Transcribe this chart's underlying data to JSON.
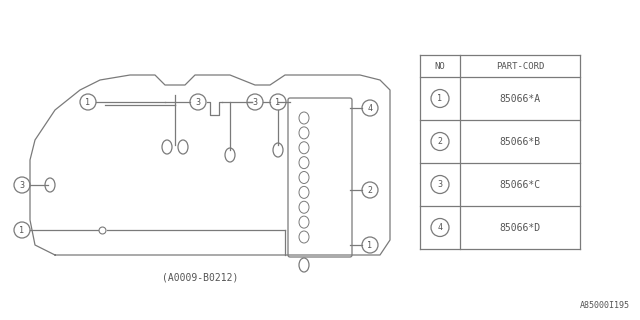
{
  "bg_color": "#ffffff",
  "line_color": "#7a7a7a",
  "text_color": "#555555",
  "fig_w": 6.4,
  "fig_h": 3.2,
  "table": {
    "no_col": "NO",
    "part_col": "PART-CORD",
    "rows": [
      [
        "1",
        "85066*A"
      ],
      [
        "2",
        "85066*B"
      ],
      [
        "3",
        "85066*C"
      ],
      [
        "4",
        "85066*D"
      ]
    ]
  },
  "diagram_label": "(A0009-B0212)",
  "watermark": "A85000I195"
}
